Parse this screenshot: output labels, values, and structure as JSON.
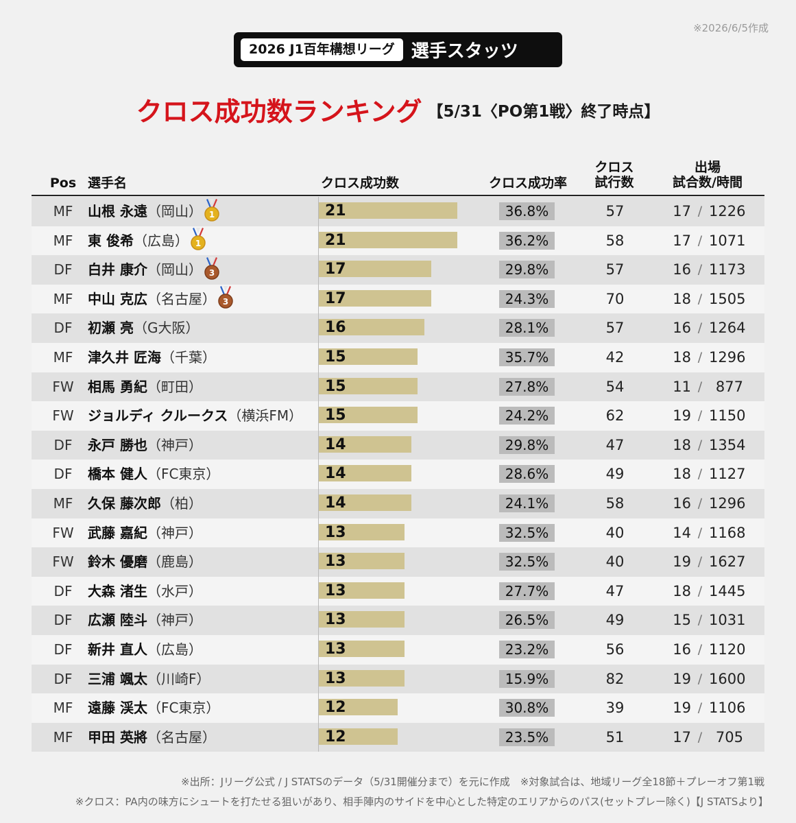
{
  "date_note": "※2026/6/5作成",
  "header": {
    "league": "2026 J1百年構想リーグ",
    "stats": "選手スタッツ"
  },
  "title": {
    "main": "クロス成功数ランキング",
    "sub": "【5/31〈PO第1戦〉終了時点】"
  },
  "columns": {
    "pos": "Pos",
    "name": "選手名",
    "successes": "クロス成功数",
    "rate": "クロス成功率",
    "attempts_l1": "クロス",
    "attempts_l2": "試行数",
    "apps_l1": "出場",
    "apps_l2": "試合数/時間"
  },
  "medal_icons": {
    "1": "gold-medal-icon",
    "3": "bronze-medal-icon"
  },
  "chart_data": {
    "type": "table",
    "bar_max": 21,
    "rows": [
      {
        "pos": "MF",
        "player": "山根 永遠",
        "club": "（岡山）",
        "medal": 1,
        "successes": 21,
        "rate": "36.8%",
        "attempts": 57,
        "games": 17,
        "minutes": 1226
      },
      {
        "pos": "MF",
        "player": "東 俊希",
        "club": "（広島）",
        "medal": 1,
        "successes": 21,
        "rate": "36.2%",
        "attempts": 58,
        "games": 17,
        "minutes": 1071
      },
      {
        "pos": "DF",
        "player": "白井 康介",
        "club": "（岡山）",
        "medal": 3,
        "successes": 17,
        "rate": "29.8%",
        "attempts": 57,
        "games": 16,
        "minutes": 1173
      },
      {
        "pos": "MF",
        "player": "中山 克広",
        "club": "（名古屋）",
        "medal": 3,
        "successes": 17,
        "rate": "24.3%",
        "attempts": 70,
        "games": 18,
        "minutes": 1505
      },
      {
        "pos": "DF",
        "player": "初瀬 亮",
        "club": "（G大阪）",
        "medal": 0,
        "successes": 16,
        "rate": "28.1%",
        "attempts": 57,
        "games": 16,
        "minutes": 1264
      },
      {
        "pos": "MF",
        "player": "津久井 匠海",
        "club": "（千葉）",
        "medal": 0,
        "successes": 15,
        "rate": "35.7%",
        "attempts": 42,
        "games": 18,
        "minutes": 1296
      },
      {
        "pos": "FW",
        "player": "相馬 勇紀",
        "club": "（町田）",
        "medal": 0,
        "successes": 15,
        "rate": "27.8%",
        "attempts": 54,
        "games": 11,
        "minutes": 877
      },
      {
        "pos": "FW",
        "player": "ジョルディ クルークス",
        "club": "（横浜FM）",
        "medal": 0,
        "successes": 15,
        "rate": "24.2%",
        "attempts": 62,
        "games": 19,
        "minutes": 1150
      },
      {
        "pos": "DF",
        "player": "永戸 勝也",
        "club": "（神戸）",
        "medal": 0,
        "successes": 14,
        "rate": "29.8%",
        "attempts": 47,
        "games": 18,
        "minutes": 1354
      },
      {
        "pos": "DF",
        "player": "橋本 健人",
        "club": "（FC東京）",
        "medal": 0,
        "successes": 14,
        "rate": "28.6%",
        "attempts": 49,
        "games": 18,
        "minutes": 1127
      },
      {
        "pos": "MF",
        "player": "久保 藤次郎",
        "club": "（柏）",
        "medal": 0,
        "successes": 14,
        "rate": "24.1%",
        "attempts": 58,
        "games": 16,
        "minutes": 1296
      },
      {
        "pos": "FW",
        "player": "武藤 嘉紀",
        "club": "（神戸）",
        "medal": 0,
        "successes": 13,
        "rate": "32.5%",
        "attempts": 40,
        "games": 14,
        "minutes": 1168
      },
      {
        "pos": "FW",
        "player": "鈴木 優磨",
        "club": "（鹿島）",
        "medal": 0,
        "successes": 13,
        "rate": "32.5%",
        "attempts": 40,
        "games": 19,
        "minutes": 1627
      },
      {
        "pos": "DF",
        "player": "大森 渚生",
        "club": "（水戸）",
        "medal": 0,
        "successes": 13,
        "rate": "27.7%",
        "attempts": 47,
        "games": 18,
        "minutes": 1445
      },
      {
        "pos": "DF",
        "player": "広瀬 陸斗",
        "club": "（神戸）",
        "medal": 0,
        "successes": 13,
        "rate": "26.5%",
        "attempts": 49,
        "games": 15,
        "minutes": 1031
      },
      {
        "pos": "DF",
        "player": "新井 直人",
        "club": "（広島）",
        "medal": 0,
        "successes": 13,
        "rate": "23.2%",
        "attempts": 56,
        "games": 16,
        "minutes": 1120
      },
      {
        "pos": "DF",
        "player": "三浦 颯太",
        "club": "（川崎F）",
        "medal": 0,
        "successes": 13,
        "rate": "15.9%",
        "attempts": 82,
        "games": 19,
        "minutes": 1600
      },
      {
        "pos": "MF",
        "player": "遠藤 渓太",
        "club": "（FC東京）",
        "medal": 0,
        "successes": 12,
        "rate": "30.8%",
        "attempts": 39,
        "games": 19,
        "minutes": 1106
      },
      {
        "pos": "MF",
        "player": "甲田 英將",
        "club": "（名古屋）",
        "medal": 0,
        "successes": 12,
        "rate": "23.5%",
        "attempts": 51,
        "games": 17,
        "minutes": 705
      }
    ]
  },
  "colors": {
    "title_red": "#d5141b",
    "bar": "#cfc391",
    "rate_box": "#bbbbbb",
    "gold": "#e4b21f",
    "bronze": "#a9592c"
  },
  "footnotes": {
    "source": "※出所：Jリーグ公式 / J STATSのデータ（5/31開催分まで）を元に作成　※対象試合は、地域リーグ全18節＋プレーオフ第1戦",
    "definition": "※クロス：PA内の味方にシュートを打たせる狙いがあり、相手陣内のサイドを中心とした特定のエリアからのパス(セットプレー除く)【J STATSより】"
  }
}
